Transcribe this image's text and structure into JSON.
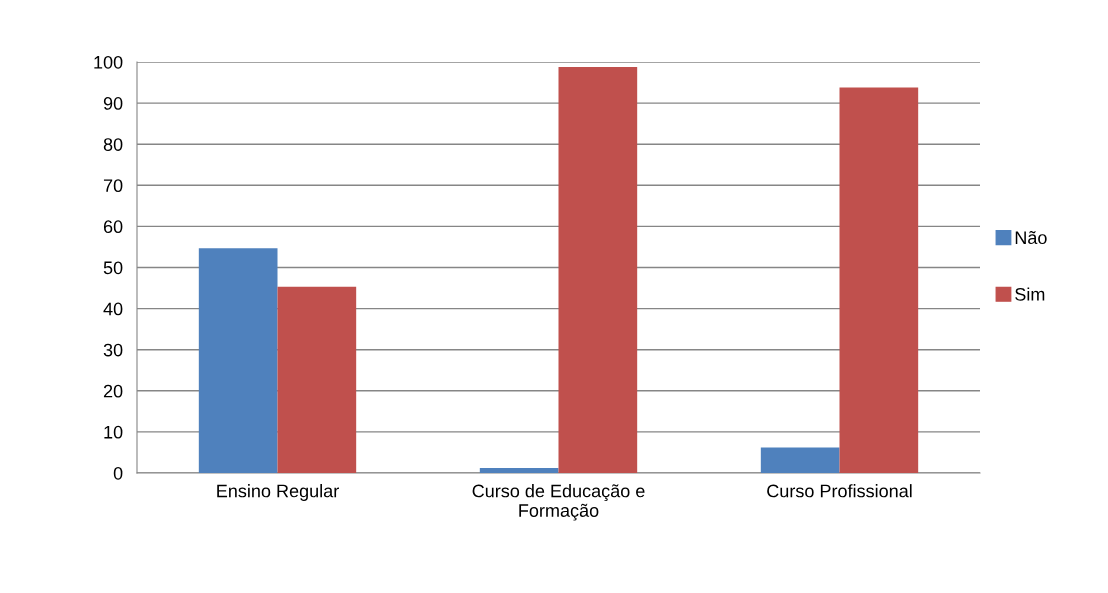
{
  "chart_data": {
    "type": "bar",
    "categories": [
      "Ensino Regular",
      "Curso de Educação e\nFormação",
      "Curso Profissional"
    ],
    "series": [
      {
        "name": "Não",
        "color": "#4f81bd",
        "values": [
          54.7,
          1.2,
          6.2
        ]
      },
      {
        "name": "Sim",
        "color": "#c0504d",
        "values": [
          45.3,
          98.8,
          93.8
        ]
      }
    ],
    "ylim": [
      0,
      100
    ],
    "yticks": [
      0,
      10,
      20,
      30,
      40,
      50,
      60,
      70,
      80,
      90,
      100
    ],
    "grid": "y",
    "legend": "right"
  }
}
